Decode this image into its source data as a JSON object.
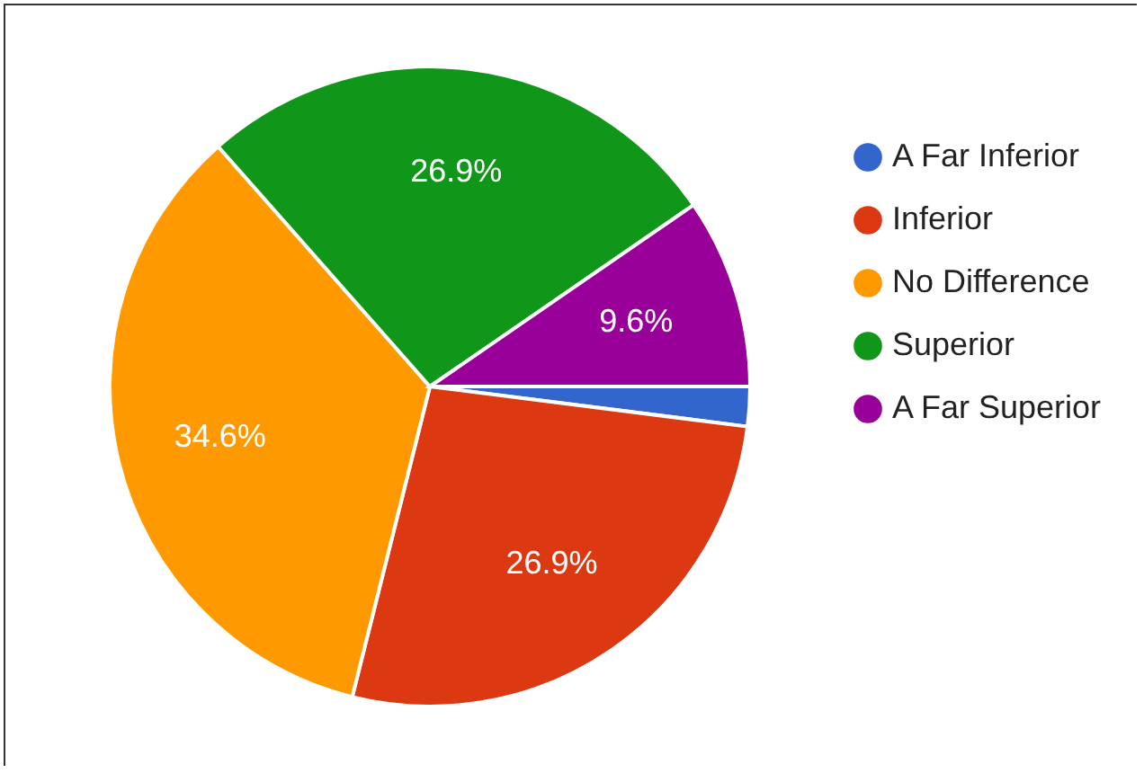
{
  "chart_data": {
    "type": "pie",
    "categories": [
      "A Far Inferior",
      "Inferior",
      "No Difference",
      "Superior",
      "A Far Superior"
    ],
    "values": [
      2.0,
      26.9,
      34.6,
      26.9,
      9.6
    ],
    "colors": [
      "#3366cc",
      "#dc3912",
      "#ff9900",
      "#109618",
      "#990099"
    ],
    "value_labels": [
      null,
      "26.9%",
      "34.6%",
      "26.9%",
      "9.6%"
    ],
    "legend": "right"
  }
}
